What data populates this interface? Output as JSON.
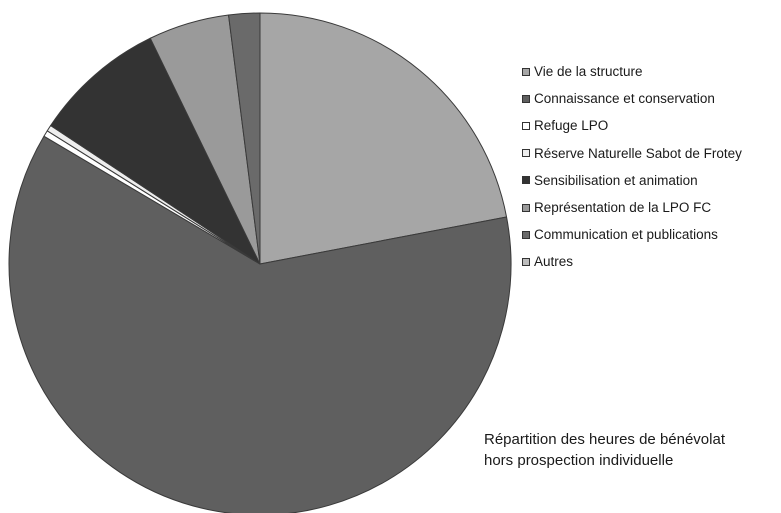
{
  "chart_data": {
    "type": "pie",
    "title": "",
    "series": [
      {
        "name": "Vie de la structure",
        "value": 22.0,
        "color": "#a6a6a6"
      },
      {
        "name": "Connaissance et conservation",
        "value": 61.5,
        "color": "#5f5f5f"
      },
      {
        "name": "Refuge LPO",
        "value": 0.4,
        "color": "#ffffff"
      },
      {
        "name": "Réserve Naturelle Sabot de Frotey",
        "value": 0.4,
        "color": "#eeeeee"
      },
      {
        "name": "Sensibilisation et animation",
        "value": 8.5,
        "color": "#333333"
      },
      {
        "name": "Représentation de la LPO FC",
        "value": 5.2,
        "color": "#9a9a9a"
      },
      {
        "name": "Communication et publications",
        "value": 2.0,
        "color": "#6a6a6a"
      },
      {
        "name": "Autres",
        "value": 0.0,
        "color": "#bdbdbd"
      }
    ],
    "legend_position": "right"
  },
  "caption": {
    "line1": "Répartition des heures de bénévolat",
    "line2": "hors prospection individuelle"
  }
}
